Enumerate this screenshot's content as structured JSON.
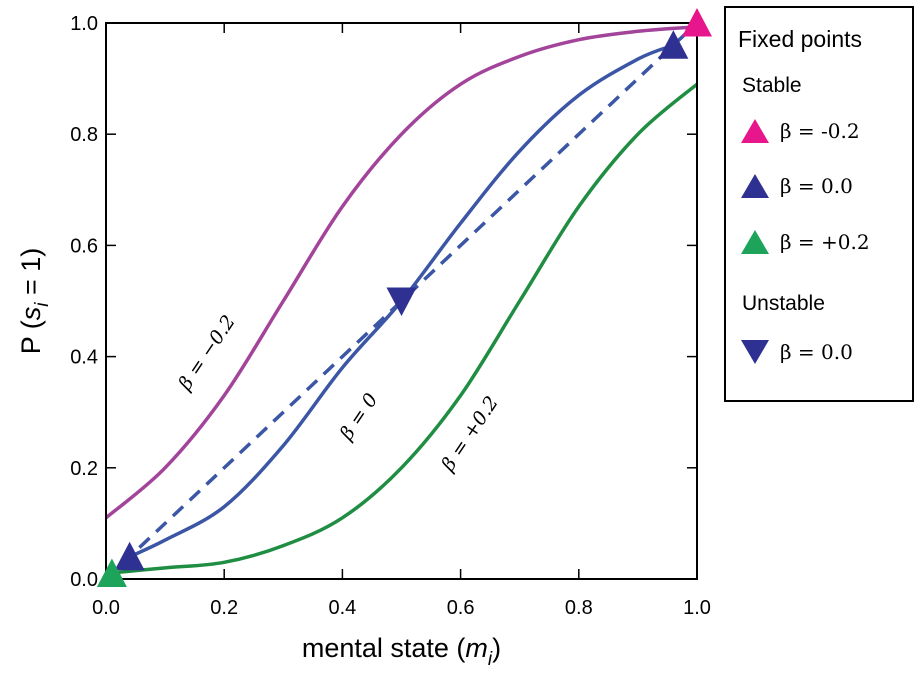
{
  "chart_data": {
    "type": "line",
    "xlabel": "mental state (m_i)",
    "xlabel_parts": {
      "prefix": "mental state (",
      "var": "m",
      "sub": "i",
      "suffix": ")"
    },
    "ylabel": "P (s_i = 1)",
    "ylabel_parts": {
      "prefix": "P (",
      "var": "s",
      "sub": "i",
      "suffix": " = 1)"
    },
    "xlim": [
      0.0,
      1.0
    ],
    "ylim": [
      0.0,
      1.0
    ],
    "x_ticks": [
      "0.0",
      "0.2",
      "0.4",
      "0.6",
      "0.8",
      "1.0"
    ],
    "y_ticks": [
      "0.0",
      "0.2",
      "0.4",
      "0.6",
      "0.8",
      "1.0"
    ],
    "grid": false,
    "series": [
      {
        "name": "β = −0.2",
        "label": "β = −0.2",
        "color": "#a2449a",
        "style": "solid",
        "x": [
          0.0,
          0.1,
          0.2,
          0.3,
          0.4,
          0.5,
          0.6,
          0.7,
          0.8,
          0.9,
          1.0
        ],
        "y": [
          0.11,
          0.2,
          0.33,
          0.5,
          0.67,
          0.8,
          0.89,
          0.94,
          0.97,
          0.985,
          0.993
        ]
      },
      {
        "name": "β = 0",
        "label": "β = 0",
        "color": "#3c56a6",
        "style": "solid",
        "x": [
          0.04,
          0.1,
          0.2,
          0.3,
          0.4,
          0.5,
          0.6,
          0.7,
          0.8,
          0.9,
          0.96
        ],
        "y": [
          0.04,
          0.07,
          0.13,
          0.24,
          0.38,
          0.5,
          0.64,
          0.77,
          0.87,
          0.935,
          0.96
        ]
      },
      {
        "name": "β = +0.2",
        "label": "β = +0.2",
        "color": "#1f8d42",
        "style": "solid",
        "x": [
          0.0,
          0.1,
          0.2,
          0.3,
          0.4,
          0.5,
          0.6,
          0.7,
          0.8,
          0.9,
          1.0
        ],
        "y": [
          0.01,
          0.02,
          0.03,
          0.06,
          0.11,
          0.2,
          0.33,
          0.5,
          0.67,
          0.8,
          0.89
        ]
      },
      {
        "name": "identity",
        "color": "#3c56a6",
        "style": "dashed",
        "x": [
          0.0,
          1.0
        ],
        "y": [
          0.0,
          1.0
        ]
      }
    ],
    "fixed_points": [
      {
        "kind": "stable",
        "beta": "-0.2",
        "x": 1.0,
        "y": 1.0,
        "color": "#e8168c"
      },
      {
        "kind": "stable",
        "beta": "0.0",
        "x": 0.04,
        "y": 0.04,
        "color": "#2e3192"
      },
      {
        "kind": "stable",
        "beta": "0.0",
        "x": 0.96,
        "y": 0.96,
        "color": "#2e3192"
      },
      {
        "kind": "stable",
        "beta": "+0.2",
        "x": 0.01,
        "y": 0.01,
        "color": "#1ea45a"
      },
      {
        "kind": "unstable",
        "beta": "0.0",
        "x": 0.5,
        "y": 0.5,
        "color": "#2e3192"
      }
    ],
    "legend": {
      "position": "right",
      "title": "Fixed points",
      "groups": [
        {
          "heading": "Stable",
          "items": [
            {
              "label": "β = -0.2",
              "color": "#e8168c",
              "marker": "triangle-up"
            },
            {
              "label": "β = 0.0",
              "color": "#2e3192",
              "marker": "triangle-up"
            },
            {
              "label": "β = +0.2",
              "color": "#1ea45a",
              "marker": "triangle-up"
            }
          ]
        },
        {
          "heading": "Unstable",
          "items": [
            {
              "label": "β = 0.0",
              "color": "#2e3192",
              "marker": "triangle-down"
            }
          ]
        }
      ]
    }
  }
}
